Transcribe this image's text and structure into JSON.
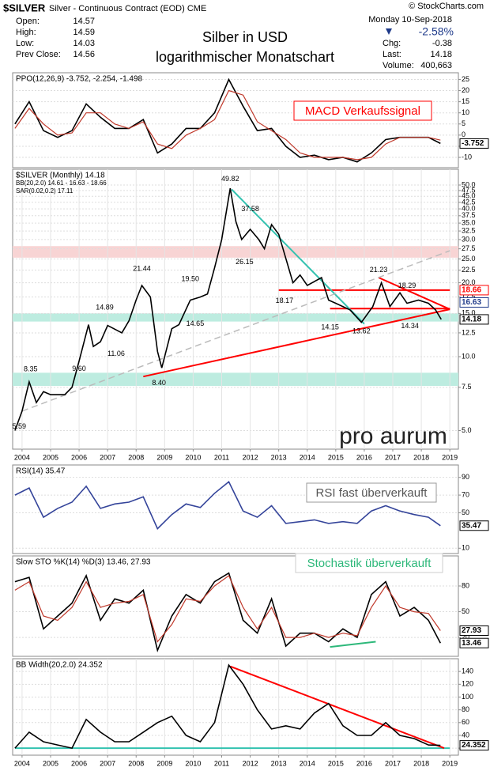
{
  "header": {
    "symbol": "$SILVER",
    "name": "Silver - Continuous Contract (EOD) CME",
    "copyright": "© StockCharts.com",
    "date": "Monday  10-Sep-2018",
    "change_pct": "-2.58%",
    "left_stats": [
      {
        "label": "Open:",
        "value": "14.57"
      },
      {
        "label": "High:",
        "value": "14.59"
      },
      {
        "label": "Low:",
        "value": "14.03"
      },
      {
        "label": "Prev Close:",
        "value": "14.56"
      }
    ],
    "right_stats": [
      {
        "label": "Chg:",
        "value": "-0.38"
      },
      {
        "label": "Last:",
        "value": "14.18"
      },
      {
        "label": "Volume:",
        "value": "400,663"
      }
    ],
    "title": "Silber in USD",
    "subtitle": "logarithmischer Monatschart"
  },
  "chart_data": [
    {
      "type": "line",
      "legend": [
        "PPO(12,26,9) -3.752, -2.254, -1.498"
      ],
      "note": "MACD Verkaufssignal",
      "x": [
        2003.75,
        2004.25,
        2004.75,
        2005.25,
        2005.75,
        2006.25,
        2006.75,
        2007.25,
        2007.75,
        2008.25,
        2008.75,
        2009.25,
        2009.75,
        2010.25,
        2010.75,
        2011.25,
        2011.75,
        2012.25,
        2012.75,
        2013.25,
        2013.75,
        2014.25,
        2014.75,
        2015.25,
        2015.75,
        2016.25,
        2016.75,
        2017.25,
        2017.75,
        2018.25,
        2018.67
      ],
      "series": [
        {
          "name": "PPO",
          "color": "#000000",
          "values": [
            5,
            15,
            2,
            -1,
            2,
            14,
            8,
            3,
            3,
            7,
            -8,
            -4,
            3,
            3,
            10,
            25,
            13,
            2,
            3,
            -5,
            -10,
            -9,
            -11,
            -10,
            -12,
            -8,
            -2,
            -1,
            -1,
            -1,
            -3.752
          ]
        },
        {
          "name": "Signal",
          "color": "#c0392b",
          "values": [
            3,
            12,
            5,
            0,
            1,
            10,
            10,
            5,
            3,
            6,
            -4,
            -6,
            0,
            3,
            7,
            20,
            18,
            6,
            2,
            -2,
            -8,
            -10,
            -10,
            -10,
            -11,
            -10,
            -4,
            -1,
            -1,
            -1,
            -2.254
          ]
        }
      ],
      "xlim": [
        2003.67,
        2019.3
      ],
      "ylim": [
        -14.6,
        28
      ],
      "yticks": [
        -10,
        -5,
        0,
        5,
        10,
        15,
        20,
        25
      ],
      "markers": [
        {
          "value": -3.752,
          "color": "#000000"
        }
      ]
    },
    {
      "type": "line",
      "log": true,
      "legend": [
        "$SILVER (Monthly) 14.18",
        "BB(20,2.0) 14.61 - 16.63 - 18.66",
        "SAR(0.02,0.2) 17.11"
      ],
      "note": "pro aurum",
      "x": [
        2003.75,
        2004.0,
        2004.25,
        2004.5,
        2004.75,
        2005.0,
        2005.5,
        2005.75,
        2006.0,
        2006.33,
        2006.5,
        2006.75,
        2007.0,
        2007.5,
        2007.75,
        2008.0,
        2008.2,
        2008.5,
        2008.75,
        2008.9,
        2009.25,
        2009.5,
        2009.9,
        2010.25,
        2010.5,
        2010.75,
        2011.0,
        2011.3,
        2011.5,
        2011.7,
        2012.0,
        2012.3,
        2012.5,
        2012.75,
        2013.0,
        2013.3,
        2013.5,
        2013.75,
        2014.0,
        2014.5,
        2014.75,
        2015.0,
        2015.5,
        2015.9,
        2016.3,
        2016.6,
        2016.9,
        2017.25,
        2017.5,
        2017.9,
        2018.25,
        2018.5,
        2018.7
      ],
      "series": [
        {
          "name": "$SILVER",
          "color": "#000000",
          "values": [
            5.0,
            6.0,
            7.9,
            6.5,
            7.2,
            7.0,
            7.0,
            7.5,
            9.6,
            13.5,
            11.0,
            11.5,
            13.4,
            12.5,
            14.0,
            17.0,
            19.5,
            17.5,
            10.5,
            9.0,
            13.0,
            13.5,
            17.0,
            17.5,
            18.0,
            23.0,
            30.0,
            48.5,
            35.5,
            30.0,
            33.0,
            30.0,
            27.5,
            34.5,
            31.5,
            24.0,
            20.0,
            21.5,
            19.5,
            21.0,
            17.0,
            16.5,
            15.5,
            13.8,
            16.0,
            20.0,
            16.0,
            18.2,
            16.5,
            17.0,
            16.5,
            15.5,
            14.18
          ]
        }
      ],
      "xlim": [
        2003.67,
        2019.3
      ],
      "ylim": [
        4.2,
        58
      ],
      "yticks": [
        {
          "value": 5,
          "label": "5.0"
        },
        {
          "value": 7.5,
          "label": "7.5"
        },
        {
          "value": 10,
          "label": "10.0"
        },
        {
          "value": 12.5,
          "label": "12.5"
        },
        {
          "value": 15,
          "label": "15.0"
        },
        {
          "value": 17.5,
          "label": "17.5"
        },
        {
          "value": 20,
          "label": "20.0"
        },
        {
          "value": 22.5,
          "label": "22.5"
        },
        {
          "value": 25,
          "label": "25.0"
        },
        {
          "value": 27.5,
          "label": "27.5"
        },
        {
          "value": 30,
          "label": "30.0"
        },
        {
          "value": 32.5,
          "label": "32.5"
        },
        {
          "value": 35,
          "label": "35.0"
        },
        {
          "value": 37.5,
          "label": "37.5"
        },
        {
          "value": 40,
          "label": "40.0"
        },
        {
          "value": 42.5,
          "label": "42.5"
        },
        {
          "value": 45,
          "label": "45.0"
        },
        {
          "value": 47.5,
          "label": "47.5"
        },
        {
          "value": 50,
          "label": "50.0"
        }
      ],
      "xticks": [
        2004,
        2005,
        2006,
        2007,
        2008,
        2009,
        2010,
        2011,
        2012,
        2013,
        2014,
        2015,
        2016,
        2017,
        2018,
        2019
      ],
      "bands": [
        {
          "from": 25.3,
          "to": 28.2,
          "color": "#f8d4d4"
        },
        {
          "from": 13.9,
          "to": 15.0,
          "color": "#bdece0"
        },
        {
          "from": 7.6,
          "to": 8.6,
          "color": "#bdece0"
        }
      ],
      "trendlines": [
        {
          "x": [
            2013.0,
            2019.0
          ],
          "y": [
            18.66,
            18.66
          ],
          "color": "#ff0000"
        },
        {
          "x": [
            2014.8,
            2019.0
          ],
          "y": [
            15.7,
            15.7
          ],
          "color": "#ff0000"
        },
        {
          "x": [
            2008.25,
            2019.0
          ],
          "y": [
            8.3,
            15.6
          ],
          "color": "#ff0000"
        },
        {
          "x": [
            2016.5,
            2019.0
          ],
          "y": [
            21.0,
            15.6
          ],
          "color": "#ff0000"
        },
        {
          "x": [
            2011.35,
            2016.0
          ],
          "y": [
            48.0,
            13.6
          ],
          "color": "#33c2b0"
        },
        {
          "x": [
            2004.0,
            2019.0
          ],
          "y": [
            6.0,
            27.0
          ],
          "color": "#bbbbbb"
        }
      ],
      "annotations": [
        {
          "x": 2004.3,
          "y": 8.35
        },
        {
          "x": 2003.9,
          "y": 5.59
        },
        {
          "x": 2006.0,
          "y": 9.6,
          "label": "9.60"
        },
        {
          "x": 2007.3,
          "y": 11.06
        },
        {
          "x": 2006.9,
          "y": 14.89
        },
        {
          "x": 2010.07,
          "y": 14.65
        },
        {
          "x": 2008.2,
          "y": 21.44
        },
        {
          "x": 2008.8,
          "y": 8.4,
          "label": "8.40"
        },
        {
          "x": 2009.9,
          "y": 19.5,
          "label": "19.50"
        },
        {
          "x": 2011.3,
          "y": 49.82
        },
        {
          "x": 2012.0,
          "y": 37.58
        },
        {
          "x": 2011.8,
          "y": 26.15
        },
        {
          "x": 2013.2,
          "y": 18.17
        },
        {
          "x": 2014.8,
          "y": 14.15
        },
        {
          "x": 2015.9,
          "y": 13.62
        },
        {
          "x": 2016.5,
          "y": 21.23
        },
        {
          "x": 2017.5,
          "y": 18.29
        },
        {
          "x": 2017.6,
          "y": 14.34
        }
      ],
      "markers": [
        {
          "value": 18.66,
          "color": "#ff0000"
        },
        {
          "value": 16.63,
          "color": "#1e3a8a"
        },
        {
          "value": 14.18,
          "color": "#000000"
        }
      ]
    },
    {
      "type": "line",
      "legend": [
        "RSI(14) 35.47"
      ],
      "note": "RSI fast überverkauft",
      "x": [
        2003.75,
        2004.25,
        2004.75,
        2005.25,
        2005.75,
        2006.25,
        2006.75,
        2007.25,
        2007.75,
        2008.25,
        2008.75,
        2009.25,
        2009.75,
        2010.25,
        2010.75,
        2011.25,
        2011.75,
        2012.25,
        2012.75,
        2013.25,
        2013.75,
        2014.25,
        2014.75,
        2015.25,
        2015.75,
        2016.25,
        2016.75,
        2017.25,
        2017.75,
        2018.25,
        2018.67
      ],
      "series": [
        {
          "name": "RSI",
          "color": "#34449a",
          "values": [
            70,
            78,
            45,
            55,
            62,
            80,
            55,
            60,
            62,
            68,
            32,
            48,
            60,
            56,
            72,
            85,
            52,
            45,
            58,
            38,
            40,
            42,
            38,
            40,
            38,
            52,
            58,
            52,
            48,
            45,
            35.47
          ]
        }
      ],
      "xlim": [
        2003.67,
        2019.3
      ],
      "ylim": [
        4,
        104
      ],
      "yticks": [
        10,
        50,
        70,
        90
      ],
      "markers": [
        {
          "value": 35.47,
          "color": "#000000"
        }
      ]
    },
    {
      "type": "line",
      "legend": [
        "Slow STO %K(14) %D(3) 13.46, 27.93"
      ],
      "note": "Stochastik überverkauft",
      "x": [
        2003.75,
        2004.25,
        2004.75,
        2005.25,
        2005.75,
        2006.25,
        2006.75,
        2007.25,
        2007.75,
        2008.25,
        2008.75,
        2009.25,
        2009.75,
        2010.25,
        2010.75,
        2011.25,
        2011.75,
        2012.25,
        2012.75,
        2013.25,
        2013.75,
        2014.25,
        2014.75,
        2015.25,
        2015.75,
        2016.25,
        2016.75,
        2017.25,
        2017.75,
        2018.25,
        2018.67
      ],
      "series": [
        {
          "name": "%K",
          "color": "#000000",
          "values": [
            85,
            90,
            30,
            45,
            60,
            92,
            40,
            65,
            60,
            75,
            5,
            45,
            70,
            60,
            85,
            95,
            40,
            25,
            65,
            10,
            25,
            25,
            15,
            30,
            20,
            70,
            85,
            45,
            55,
            40,
            13.46
          ]
        },
        {
          "name": "%D",
          "color": "#c0392b",
          "values": [
            75,
            85,
            45,
            40,
            55,
            85,
            55,
            60,
            62,
            70,
            15,
            35,
            65,
            62,
            80,
            92,
            55,
            30,
            55,
            20,
            20,
            25,
            20,
            25,
            22,
            55,
            80,
            55,
            50,
            48,
            27.93
          ]
        }
      ],
      "xlim": [
        2003.67,
        2019.3
      ],
      "ylim": [
        -2,
        115
      ],
      "yticks": [
        20,
        50,
        80
      ],
      "trendlines": [
        {
          "x": [
            2014.8,
            2016.4
          ],
          "y": [
            9,
            15
          ],
          "color": "#2db87a"
        }
      ],
      "markers": [
        {
          "value": 27.93,
          "color": "#000000"
        },
        {
          "value": 13.46,
          "color": "#000000"
        }
      ]
    },
    {
      "type": "line",
      "legend": [
        "BB Width(20,2.0) 24.352"
      ],
      "x": [
        2003.75,
        2004.25,
        2004.75,
        2005.25,
        2005.75,
        2006.25,
        2006.75,
        2007.25,
        2007.75,
        2008.25,
        2008.75,
        2009.25,
        2009.75,
        2010.25,
        2010.75,
        2011.25,
        2011.75,
        2012.25,
        2012.75,
        2013.25,
        2013.75,
        2014.25,
        2014.75,
        2015.25,
        2015.75,
        2016.25,
        2016.75,
        2017.25,
        2017.75,
        2018.25,
        2018.67
      ],
      "series": [
        {
          "name": "BB Width",
          "color": "#000000",
          "values": [
            20,
            45,
            30,
            25,
            20,
            65,
            45,
            30,
            30,
            45,
            60,
            70,
            40,
            30,
            60,
            150,
            120,
            80,
            50,
            55,
            50,
            75,
            90,
            55,
            40,
            40,
            60,
            40,
            35,
            25,
            24.352
          ]
        }
      ],
      "xlim": [
        2003.67,
        2019.3
      ],
      "ylim": [
        9,
        160
      ],
      "yticks": [
        20,
        40,
        60,
        80,
        100,
        120,
        140
      ],
      "xticks": [
        2004,
        2005,
        2006,
        2007,
        2008,
        2009,
        2010,
        2011,
        2012,
        2013,
        2014,
        2015,
        2016,
        2017,
        2018,
        2019
      ],
      "trendlines": [
        {
          "x": [
            2003.75,
            2019.0
          ],
          "y": [
            20,
            20
          ],
          "color": "#33c2b0"
        },
        {
          "x": [
            2011.3,
            2018.8
          ],
          "y": [
            148,
            20
          ],
          "color": "#ff0000"
        }
      ],
      "markers": [
        {
          "value": 24.352,
          "color": "#000000"
        }
      ]
    }
  ]
}
